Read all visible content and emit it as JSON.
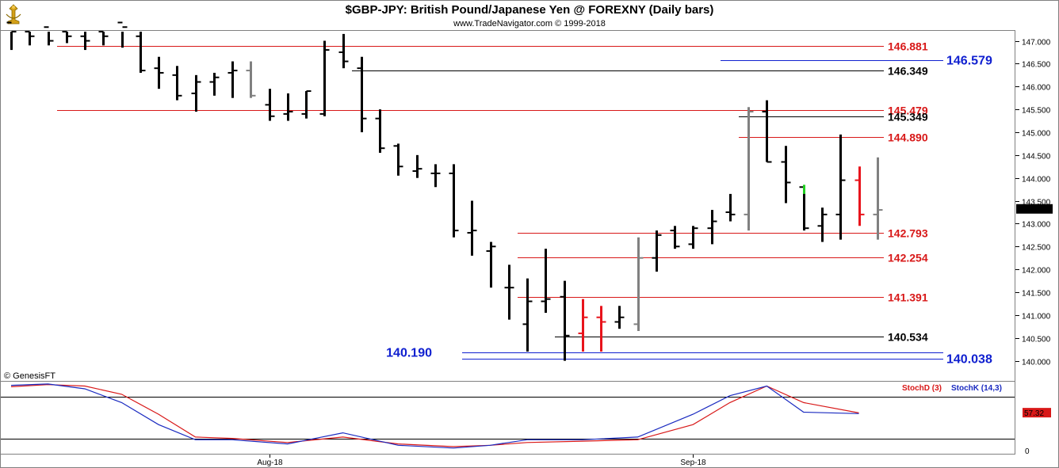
{
  "title": "$GBP-JPY:  British Pound/Japanese Yen @ FOREXNY  (Daily bars)",
  "subtitle": "www.TradeNavigator.com © 1999-2018",
  "watermark": "© GenesisFT",
  "colors": {
    "up_bar": "#000000",
    "red_bar": "#e8141c",
    "gray_bar": "#808080",
    "green_tick": "#22d022",
    "red_line": "#d81818",
    "blue_text": "#1020d0",
    "stoch_d": "#d81818",
    "stoch_k": "#1a2ac0"
  },
  "chart_data": [
    {
      "type": "ohlc",
      "title": "$GBP-JPY:  British Pound/Japanese Yen @ FOREXNY  (Daily bars)",
      "ylim": [
        139.75,
        147.2
      ],
      "yticks": [
        "147.000",
        "146.500",
        "146.000",
        "145.500",
        "145.000",
        "144.500",
        "144.000",
        "143.500",
        "143.000",
        "142.500",
        "142.000",
        "141.500",
        "141.000",
        "140.500",
        "140.000"
      ],
      "xticks": [
        {
          "label": "Aug-18",
          "index": 14
        },
        {
          "label": "Sep-18",
          "index": 37
        }
      ],
      "last_price": "143.323",
      "bars": [
        {
          "o": 147.4,
          "h": 147.5,
          "l": 146.8,
          "c": 147.2,
          "color": "black"
        },
        {
          "o": 147.2,
          "h": 147.6,
          "l": 146.9,
          "c": 147.1,
          "color": "black"
        },
        {
          "o": 147.3,
          "h": 147.4,
          "l": 146.9,
          "c": 147.0,
          "color": "black"
        },
        {
          "o": 147.2,
          "h": 147.4,
          "l": 146.95,
          "c": 147.1,
          "color": "black"
        },
        {
          "o": 147.1,
          "h": 147.3,
          "l": 146.8,
          "c": 147.0,
          "color": "black"
        },
        {
          "o": 147.2,
          "h": 147.3,
          "l": 146.9,
          "c": 147.1,
          "color": "black"
        },
        {
          "o": 147.4,
          "h": 147.5,
          "l": 146.85,
          "c": 147.3,
          "color": "black"
        },
        {
          "o": 147.1,
          "h": 147.3,
          "l": 146.3,
          "c": 146.35,
          "color": "black"
        },
        {
          "o": 146.4,
          "h": 146.65,
          "l": 145.95,
          "c": 146.3,
          "color": "black"
        },
        {
          "o": 146.25,
          "h": 146.45,
          "l": 145.7,
          "c": 145.8,
          "color": "black"
        },
        {
          "o": 145.85,
          "h": 146.25,
          "l": 145.45,
          "c": 146.1,
          "color": "black"
        },
        {
          "o": 146.1,
          "h": 146.3,
          "l": 145.8,
          "c": 146.2,
          "color": "black"
        },
        {
          "o": 146.3,
          "h": 146.55,
          "l": 145.75,
          "c": 146.35,
          "color": "black"
        },
        {
          "o": 146.35,
          "h": 146.55,
          "l": 145.75,
          "c": 145.8,
          "color": "gray"
        },
        {
          "o": 145.6,
          "h": 145.95,
          "l": 145.25,
          "c": 145.35,
          "color": "black"
        },
        {
          "o": 145.4,
          "h": 145.85,
          "l": 145.25,
          "c": 145.45,
          "color": "black"
        },
        {
          "o": 145.4,
          "h": 145.9,
          "l": 145.3,
          "c": 145.9,
          "color": "black"
        },
        {
          "o": 145.4,
          "h": 147.0,
          "l": 145.35,
          "c": 146.8,
          "color": "black"
        },
        {
          "o": 146.75,
          "h": 147.15,
          "l": 146.4,
          "c": 146.55,
          "color": "black"
        },
        {
          "o": 146.4,
          "h": 146.65,
          "l": 145.0,
          "c": 145.3,
          "color": "black"
        },
        {
          "o": 145.3,
          "h": 145.5,
          "l": 144.55,
          "c": 144.65,
          "color": "black"
        },
        {
          "o": 144.7,
          "h": 144.75,
          "l": 144.05,
          "c": 144.25,
          "color": "black"
        },
        {
          "o": 144.15,
          "h": 144.5,
          "l": 144.0,
          "c": 144.2,
          "color": "black"
        },
        {
          "o": 144.1,
          "h": 144.3,
          "l": 143.8,
          "c": 144.1,
          "color": "black"
        },
        {
          "o": 144.1,
          "h": 144.3,
          "l": 142.7,
          "c": 142.85,
          "color": "black"
        },
        {
          "o": 142.8,
          "h": 143.5,
          "l": 142.3,
          "c": 142.85,
          "color": "black"
        },
        {
          "o": 142.4,
          "h": 142.6,
          "l": 141.6,
          "c": 142.5,
          "color": "black"
        },
        {
          "o": 141.6,
          "h": 142.1,
          "l": 140.9,
          "c": 141.6,
          "color": "black"
        },
        {
          "o": 140.8,
          "h": 141.8,
          "l": 140.2,
          "c": 141.3,
          "color": "black"
        },
        {
          "o": 141.3,
          "h": 142.45,
          "l": 141.05,
          "c": 141.35,
          "color": "black"
        },
        {
          "o": 141.4,
          "h": 141.75,
          "l": 140.0,
          "c": 140.55,
          "color": "black"
        },
        {
          "o": 140.6,
          "h": 141.35,
          "l": 140.2,
          "c": 140.95,
          "color": "red"
        },
        {
          "o": 140.95,
          "h": 141.2,
          "l": 140.2,
          "c": 140.85,
          "color": "red"
        },
        {
          "o": 140.85,
          "h": 141.2,
          "l": 140.7,
          "c": 140.95,
          "color": "black"
        },
        {
          "o": 140.8,
          "h": 142.7,
          "l": 140.65,
          "c": 142.25,
          "color": "gray"
        },
        {
          "o": 142.25,
          "h": 142.85,
          "l": 141.95,
          "c": 142.75,
          "color": "black"
        },
        {
          "o": 142.85,
          "h": 142.95,
          "l": 142.45,
          "c": 142.5,
          "color": "black"
        },
        {
          "o": 142.55,
          "h": 142.95,
          "l": 142.45,
          "c": 142.9,
          "color": "black"
        },
        {
          "o": 142.9,
          "h": 143.3,
          "l": 142.55,
          "c": 143.05,
          "color": "black"
        },
        {
          "o": 143.25,
          "h": 143.65,
          "l": 143.05,
          "c": 143.2,
          "color": "black"
        },
        {
          "o": 143.2,
          "h": 145.55,
          "l": 142.85,
          "c": 145.45,
          "color": "gray"
        },
        {
          "o": 145.45,
          "h": 145.7,
          "l": 144.35,
          "c": 144.35,
          "color": "black"
        },
        {
          "o": 144.35,
          "h": 144.7,
          "l": 143.45,
          "c": 143.9,
          "color": "black"
        },
        {
          "o": 143.8,
          "h": 143.8,
          "l": 142.85,
          "c": 142.9,
          "color": "black"
        },
        {
          "o": 142.95,
          "h": 143.35,
          "l": 142.6,
          "c": 143.2,
          "color": "black"
        },
        {
          "o": 143.2,
          "h": 144.95,
          "l": 142.65,
          "c": 143.95,
          "color": "black"
        },
        {
          "o": 143.95,
          "h": 144.25,
          "l": 142.95,
          "c": 143.2,
          "color": "red"
        },
        {
          "o": 143.2,
          "h": 144.45,
          "l": 142.65,
          "c": 143.3,
          "color": "gray"
        }
      ],
      "levels": [
        {
          "value": 146.881,
          "label": "146.881",
          "color": "red",
          "from": 3
        },
        {
          "value": 146.579,
          "label": "146.579",
          "color": "blue",
          "from": 39
        },
        {
          "value": 146.349,
          "label": "146.349",
          "color": "black",
          "from": 19
        },
        {
          "value": 145.479,
          "label": "145.479",
          "color": "red",
          "from": 3
        },
        {
          "value": 145.349,
          "label": "145.349",
          "color": "black",
          "from": 40
        },
        {
          "value": 144.89,
          "label": "144.890",
          "color": "red",
          "from": 40
        },
        {
          "value": 142.793,
          "label": "142.793",
          "color": "red",
          "from": 28
        },
        {
          "value": 142.254,
          "label": "142.254",
          "color": "red",
          "from": 28
        },
        {
          "value": 141.391,
          "label": "141.391",
          "color": "red",
          "from": 28
        },
        {
          "value": 140.534,
          "label": "140.534",
          "color": "black",
          "from": 30
        },
        {
          "value": 140.19,
          "label": "140.190",
          "color": "blue",
          "from": 25
        },
        {
          "value": 140.038,
          "label": "140.038",
          "color": "blue",
          "from": 25
        }
      ]
    },
    {
      "type": "line",
      "ylim": [
        0,
        100
      ],
      "yticks": [
        "0"
      ],
      "last_value": "57.32",
      "series": [
        {
          "name": "StochD (3)",
          "color": "red",
          "x": [
            0,
            2,
            4,
            6,
            8,
            10,
            12,
            15,
            18,
            21,
            24,
            26,
            28,
            31,
            34,
            37,
            39,
            41,
            43,
            46
          ],
          "values": [
            95,
            98,
            96,
            84,
            55,
            22,
            20,
            14,
            22,
            12,
            8,
            10,
            14,
            16,
            18,
            40,
            72,
            96,
            72,
            57
          ]
        },
        {
          "name": "StochK (14,3)",
          "color": "blue",
          "x": [
            0,
            2,
            4,
            6,
            8,
            10,
            12,
            15,
            18,
            21,
            24,
            26,
            28,
            31,
            34,
            37,
            39,
            41,
            43,
            46
          ],
          "values": [
            97,
            99,
            92,
            72,
            40,
            18,
            18,
            12,
            28,
            10,
            6,
            10,
            18,
            18,
            22,
            55,
            82,
            96,
            58,
            56
          ]
        }
      ]
    }
  ]
}
